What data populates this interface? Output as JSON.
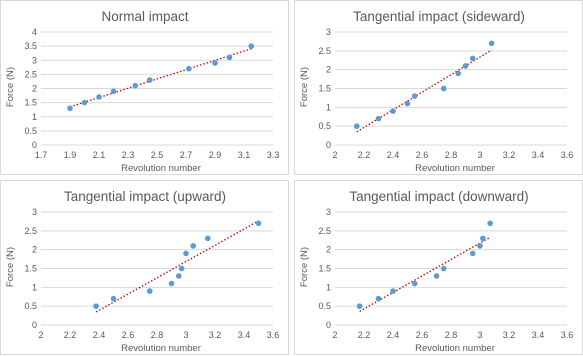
{
  "colors": {
    "points": "#5b9bd5",
    "trendline": "#c00000",
    "gridline": "#d9d9d9",
    "text": "#595959"
  },
  "chart_data": [
    {
      "type": "scatter",
      "title": "Normal impact",
      "xlabel": "Revolution number",
      "ylabel": "Force (N)",
      "xlim": [
        1.7,
        3.3
      ],
      "ylim": [
        0,
        4
      ],
      "xticks": [
        1.7,
        1.9,
        2.1,
        2.3,
        2.5,
        2.7,
        2.9,
        3.1,
        3.3
      ],
      "xtick_labels": [
        "1.7",
        "1.9",
        "2.1",
        "2.3",
        "2.5",
        "2.7",
        "2.9",
        "3.1",
        "3.3"
      ],
      "yticks": [
        0,
        0.5,
        1,
        1.5,
        2,
        2.5,
        3,
        3.5,
        4
      ],
      "ytick_labels": [
        "0",
        "0.5",
        "1",
        "1.5",
        "2",
        "2.5",
        "3",
        "3.5",
        "4"
      ],
      "gridlines": "horizontal",
      "trendline": "linear dotted",
      "points": [
        {
          "x": 1.9,
          "y": 1.3
        },
        {
          "x": 2.0,
          "y": 1.5
        },
        {
          "x": 2.1,
          "y": 1.7
        },
        {
          "x": 2.2,
          "y": 1.9
        },
        {
          "x": 2.35,
          "y": 2.1
        },
        {
          "x": 2.45,
          "y": 2.3
        },
        {
          "x": 2.72,
          "y": 2.7
        },
        {
          "x": 2.9,
          "y": 2.9
        },
        {
          "x": 3.0,
          "y": 3.1
        },
        {
          "x": 3.15,
          "y": 3.5
        }
      ]
    },
    {
      "type": "scatter",
      "title": "Tangential impact (sideward)",
      "xlabel": "Revolution number",
      "ylabel": "Force (N)",
      "xlim": [
        2,
        3.6
      ],
      "ylim": [
        0,
        3
      ],
      "xticks": [
        2,
        2.2,
        2.4,
        2.6,
        2.8,
        3,
        3.2,
        3.4,
        3.6
      ],
      "xtick_labels": [
        "2",
        "2.2",
        "2.4",
        "2.6",
        "2.8",
        "3",
        "3.2",
        "3.4",
        "3.6"
      ],
      "yticks": [
        0,
        0.5,
        1,
        1.5,
        2,
        2.5,
        3
      ],
      "ytick_labels": [
        "0",
        "0.5",
        "1",
        "1.5",
        "2",
        "2.5",
        "3"
      ],
      "gridlines": "horizontal",
      "trendline": "linear dotted",
      "points": [
        {
          "x": 2.15,
          "y": 0.5
        },
        {
          "x": 2.3,
          "y": 0.7
        },
        {
          "x": 2.4,
          "y": 0.9
        },
        {
          "x": 2.5,
          "y": 1.1
        },
        {
          "x": 2.55,
          "y": 1.3
        },
        {
          "x": 2.75,
          "y": 1.5
        },
        {
          "x": 2.85,
          "y": 1.9
        },
        {
          "x": 2.9,
          "y": 2.1
        },
        {
          "x": 2.95,
          "y": 2.3
        },
        {
          "x": 3.08,
          "y": 2.7
        }
      ]
    },
    {
      "type": "scatter",
      "title": "Tangential impact (upward)",
      "xlabel": "Revolution number",
      "ylabel": "Force (N)",
      "xlim": [
        2,
        3.6
      ],
      "ylim": [
        0,
        3
      ],
      "xticks": [
        2,
        2.2,
        2.4,
        2.6,
        2.8,
        3,
        3.2,
        3.4,
        3.6
      ],
      "xtick_labels": [
        "2",
        "2.2",
        "2.4",
        "2.6",
        "2.8",
        "3",
        "3.2",
        "3.4",
        "3.6"
      ],
      "yticks": [
        0,
        0.5,
        1,
        1.5,
        2,
        2.5,
        3
      ],
      "ytick_labels": [
        "0",
        "0.5",
        "1",
        "1.5",
        "2",
        "2.5",
        "3"
      ],
      "gridlines": "horizontal",
      "trendline": "linear dotted",
      "points": [
        {
          "x": 2.38,
          "y": 0.5
        },
        {
          "x": 2.5,
          "y": 0.7
        },
        {
          "x": 2.75,
          "y": 0.9
        },
        {
          "x": 2.9,
          "y": 1.1
        },
        {
          "x": 2.95,
          "y": 1.3
        },
        {
          "x": 2.97,
          "y": 1.5
        },
        {
          "x": 3.0,
          "y": 1.9
        },
        {
          "x": 3.05,
          "y": 2.1
        },
        {
          "x": 3.15,
          "y": 2.3
        },
        {
          "x": 3.5,
          "y": 2.7
        }
      ]
    },
    {
      "type": "scatter",
      "title": "Tangential impact (downward)",
      "xlabel": "Revolution number",
      "ylabel": "Force (N)",
      "xlim": [
        2,
        3.6
      ],
      "ylim": [
        0,
        3
      ],
      "xticks": [
        2,
        2.2,
        2.4,
        2.6,
        2.8,
        3,
        3.2,
        3.4,
        3.6
      ],
      "xtick_labels": [
        "2",
        "2.2",
        "2.4",
        "2.6",
        "2.8",
        "3",
        "3.2",
        "3.4",
        "3.6"
      ],
      "yticks": [
        0,
        0.5,
        1,
        1.5,
        2,
        2.5,
        3
      ],
      "ytick_labels": [
        "0",
        "0.5",
        "1",
        "1.5",
        "2",
        "2.5",
        "3"
      ],
      "gridlines": "horizontal",
      "trendline": "linear dotted",
      "points": [
        {
          "x": 2.17,
          "y": 0.5
        },
        {
          "x": 2.3,
          "y": 0.7
        },
        {
          "x": 2.4,
          "y": 0.9
        },
        {
          "x": 2.55,
          "y": 1.1
        },
        {
          "x": 2.7,
          "y": 1.3
        },
        {
          "x": 2.75,
          "y": 1.5
        },
        {
          "x": 2.95,
          "y": 1.9
        },
        {
          "x": 3.0,
          "y": 2.1
        },
        {
          "x": 3.02,
          "y": 2.3
        },
        {
          "x": 3.07,
          "y": 2.7
        }
      ]
    }
  ]
}
